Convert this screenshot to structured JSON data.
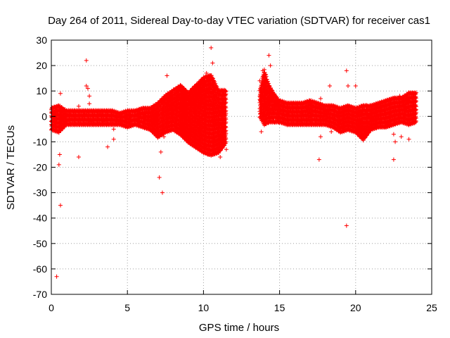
{
  "chart_data": {
    "type": "scatter",
    "title": "Day 264 of 2011, Sidereal Day-to-day VTEC variation (SDTVAR) for receiver cas1",
    "xlabel": "GPS time / hours",
    "ylabel": "SDTVAR / TECUs",
    "xlim": [
      0,
      25
    ],
    "ylim": [
      -70,
      30
    ],
    "xticks": [
      0,
      5,
      10,
      15,
      20,
      25
    ],
    "yticks": [
      -70,
      -60,
      -50,
      -40,
      -30,
      -20,
      -10,
      0,
      10,
      20,
      30
    ],
    "grid": true,
    "marker": "plus",
    "color": "#ff0000",
    "series": [
      {
        "name": "SDTVAR",
        "points": [
          [
            0.0,
            -2
          ],
          [
            0.1,
            -5
          ],
          [
            0.2,
            1
          ],
          [
            0.3,
            -3
          ],
          [
            0.35,
            -63
          ],
          [
            0.4,
            2
          ],
          [
            0.5,
            -19
          ],
          [
            0.55,
            -15
          ],
          [
            0.6,
            -35
          ],
          [
            0.6,
            9
          ],
          [
            0.7,
            -3
          ],
          [
            0.8,
            0
          ],
          [
            1.0,
            -2
          ],
          [
            1.2,
            1
          ],
          [
            1.4,
            -1
          ],
          [
            1.6,
            0
          ],
          [
            1.8,
            -16
          ],
          [
            1.8,
            4
          ],
          [
            2.0,
            -1
          ],
          [
            2.2,
            1
          ],
          [
            2.3,
            22
          ],
          [
            2.3,
            12
          ],
          [
            2.4,
            11
          ],
          [
            2.5,
            8
          ],
          [
            2.5,
            5
          ],
          [
            2.6,
            -2
          ],
          [
            2.8,
            0
          ],
          [
            3.0,
            -1
          ],
          [
            3.2,
            1
          ],
          [
            3.4,
            -2
          ],
          [
            3.6,
            0
          ],
          [
            3.7,
            -12
          ],
          [
            3.9,
            -1
          ],
          [
            4.1,
            -5
          ],
          [
            4.1,
            -9
          ],
          [
            4.3,
            -2
          ],
          [
            4.5,
            1
          ],
          [
            4.7,
            -3
          ],
          [
            4.9,
            -1
          ],
          [
            5.1,
            0
          ],
          [
            5.3,
            -3
          ],
          [
            5.5,
            2
          ],
          [
            5.7,
            -2
          ],
          [
            5.9,
            1
          ],
          [
            6.1,
            3
          ],
          [
            6.3,
            -1
          ],
          [
            6.5,
            0
          ],
          [
            6.7,
            4
          ],
          [
            6.9,
            2
          ],
          [
            7.0,
            -2
          ],
          [
            7.1,
            -24
          ],
          [
            7.2,
            -14
          ],
          [
            7.3,
            -30
          ],
          [
            7.3,
            6
          ],
          [
            7.4,
            -8
          ],
          [
            7.5,
            3
          ],
          [
            7.6,
            16
          ],
          [
            7.8,
            7
          ],
          [
            8.0,
            5
          ],
          [
            8.2,
            2
          ],
          [
            8.4,
            9
          ],
          [
            8.5,
            12
          ],
          [
            8.7,
            4
          ],
          [
            8.9,
            -3
          ],
          [
            9.0,
            6
          ],
          [
            9.2,
            -5
          ],
          [
            9.4,
            3
          ],
          [
            9.5,
            -8
          ],
          [
            9.7,
            0
          ],
          [
            9.9,
            8
          ],
          [
            10.0,
            15
          ],
          [
            10.1,
            -12
          ],
          [
            10.2,
            17
          ],
          [
            10.3,
            -15
          ],
          [
            10.4,
            10
          ],
          [
            10.5,
            27
          ],
          [
            10.6,
            21
          ],
          [
            10.7,
            -8
          ],
          [
            10.8,
            5
          ],
          [
            10.9,
            -13
          ],
          [
            11.1,
            -16
          ],
          [
            11.2,
            2
          ],
          [
            11.3,
            10
          ],
          [
            11.4,
            -4
          ],
          [
            11.5,
            -13
          ],
          [
            13.7,
            14
          ],
          [
            13.8,
            -6
          ],
          [
            13.9,
            18
          ],
          [
            14.0,
            10
          ],
          [
            14.2,
            3
          ],
          [
            14.3,
            24
          ],
          [
            14.4,
            20
          ],
          [
            14.5,
            7
          ],
          [
            14.7,
            3
          ],
          [
            14.9,
            -1
          ],
          [
            15.1,
            2
          ],
          [
            15.3,
            5
          ],
          [
            15.5,
            1
          ],
          [
            15.7,
            3
          ],
          [
            15.9,
            0
          ],
          [
            16.1,
            2
          ],
          [
            16.3,
            -2
          ],
          [
            16.5,
            1
          ],
          [
            16.8,
            3
          ],
          [
            17.0,
            5
          ],
          [
            17.3,
            2
          ],
          [
            17.5,
            4
          ],
          [
            17.6,
            -17
          ],
          [
            17.7,
            -8
          ],
          [
            17.7,
            7
          ],
          [
            17.9,
            1
          ],
          [
            18.1,
            3
          ],
          [
            18.3,
            12
          ],
          [
            18.4,
            -6
          ],
          [
            18.6,
            0
          ],
          [
            18.8,
            1
          ],
          [
            19.0,
            -2
          ],
          [
            19.2,
            -4
          ],
          [
            19.4,
            -43
          ],
          [
            19.4,
            18
          ],
          [
            19.5,
            12
          ],
          [
            19.6,
            -2
          ],
          [
            19.8,
            0
          ],
          [
            20.0,
            12
          ],
          [
            20.1,
            -4
          ],
          [
            20.3,
            -2
          ],
          [
            20.5,
            -5
          ],
          [
            20.7,
            -7
          ],
          [
            20.9,
            -3
          ],
          [
            21.1,
            -1
          ],
          [
            21.3,
            -4
          ],
          [
            21.5,
            0
          ],
          [
            21.7,
            -2
          ],
          [
            21.9,
            1
          ],
          [
            22.1,
            -3
          ],
          [
            22.3,
            0
          ],
          [
            22.5,
            -17
          ],
          [
            22.5,
            -7
          ],
          [
            22.6,
            -10
          ],
          [
            22.7,
            2
          ],
          [
            22.9,
            8
          ],
          [
            23.0,
            -8
          ],
          [
            23.2,
            3
          ],
          [
            23.4,
            6
          ],
          [
            23.5,
            -9
          ],
          [
            23.6,
            2
          ],
          [
            23.8,
            9
          ],
          [
            23.9,
            4
          ]
        ],
        "dense_band": [
          [
            0.0,
            -5,
            3
          ],
          [
            0.5,
            -6,
            4
          ],
          [
            1.0,
            -3,
            2
          ],
          [
            1.5,
            -3,
            2
          ],
          [
            2.0,
            -3,
            2
          ],
          [
            2.5,
            -3,
            2
          ],
          [
            3.0,
            -3,
            2
          ],
          [
            3.5,
            -3,
            2
          ],
          [
            4.0,
            -3,
            2
          ],
          [
            4.5,
            -3,
            1
          ],
          [
            5.0,
            -4,
            2
          ],
          [
            5.5,
            -3,
            2
          ],
          [
            6.0,
            -4,
            3
          ],
          [
            6.5,
            -5,
            3
          ],
          [
            7.0,
            -8,
            5
          ],
          [
            7.5,
            -6,
            8
          ],
          [
            8.0,
            -5,
            10
          ],
          [
            8.5,
            -7,
            12
          ],
          [
            9.0,
            -10,
            9
          ],
          [
            9.5,
            -12,
            12
          ],
          [
            10.0,
            -14,
            15
          ],
          [
            10.5,
            -15,
            16
          ],
          [
            11.0,
            -14,
            10
          ],
          [
            11.5,
            -10,
            10
          ],
          [
            13.7,
            0,
            10
          ],
          [
            14.0,
            -3,
            18
          ],
          [
            14.3,
            -2,
            12
          ],
          [
            14.7,
            -2,
            8
          ],
          [
            15.0,
            -2,
            6
          ],
          [
            15.5,
            -3,
            5
          ],
          [
            16.0,
            -3,
            5
          ],
          [
            16.5,
            -3,
            5
          ],
          [
            17.0,
            -3,
            6
          ],
          [
            17.5,
            -3,
            5
          ],
          [
            18.0,
            -3,
            4
          ],
          [
            18.5,
            -4,
            4
          ],
          [
            19.0,
            -6,
            3
          ],
          [
            19.5,
            -5,
            4
          ],
          [
            20.0,
            -6,
            3
          ],
          [
            20.5,
            -9,
            4
          ],
          [
            21.0,
            -5,
            4
          ],
          [
            21.5,
            -4,
            5
          ],
          [
            22.0,
            -4,
            6
          ],
          [
            22.5,
            -3,
            7
          ],
          [
            23.0,
            -2,
            7
          ],
          [
            23.5,
            -3,
            9
          ],
          [
            24.0,
            -2,
            9
          ]
        ]
      }
    ]
  }
}
